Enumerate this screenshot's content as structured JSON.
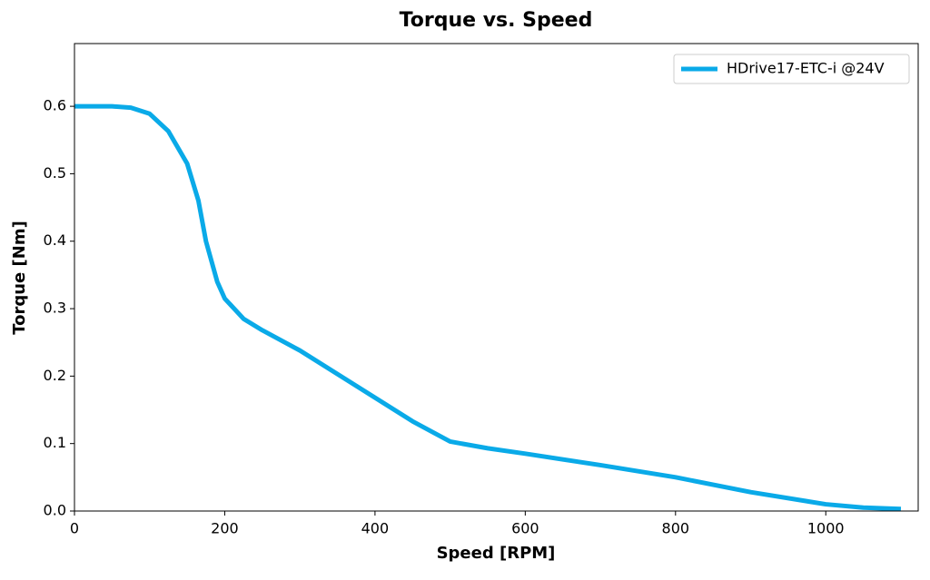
{
  "chart_data": {
    "type": "line",
    "title": "Torque vs. Speed",
    "x_label": "Speed [RPM]",
    "y_label": "Torque [Nm]",
    "x": [
      0,
      50,
      75,
      100,
      125,
      150,
      165,
      175,
      190,
      200,
      225,
      250,
      300,
      400,
      450,
      500,
      550,
      600,
      700,
      800,
      900,
      1000,
      1050,
      1100
    ],
    "series": [
      {
        "name": "HDrive17-ETC-i @24V",
        "color": "#0aaae8",
        "values": [
          0.6,
          0.6,
          0.598,
          0.589,
          0.563,
          0.515,
          0.46,
          0.4,
          0.34,
          0.315,
          0.285,
          0.268,
          0.238,
          0.168,
          0.133,
          0.103,
          0.093,
          0.085,
          0.068,
          0.05,
          0.028,
          0.01,
          0.005,
          0.003
        ]
      }
    ],
    "xlim": [
      0,
      1123
    ],
    "ylim": [
      0,
      0.693
    ],
    "xticks": [
      0,
      200,
      400,
      600,
      800,
      1000
    ],
    "yticks": [
      {
        "value": 0,
        "label": "0.0"
      },
      0.1,
      0.2,
      0.3,
      0.4,
      0.5,
      0.6
    ],
    "legend": "upper right",
    "grid": false
  }
}
